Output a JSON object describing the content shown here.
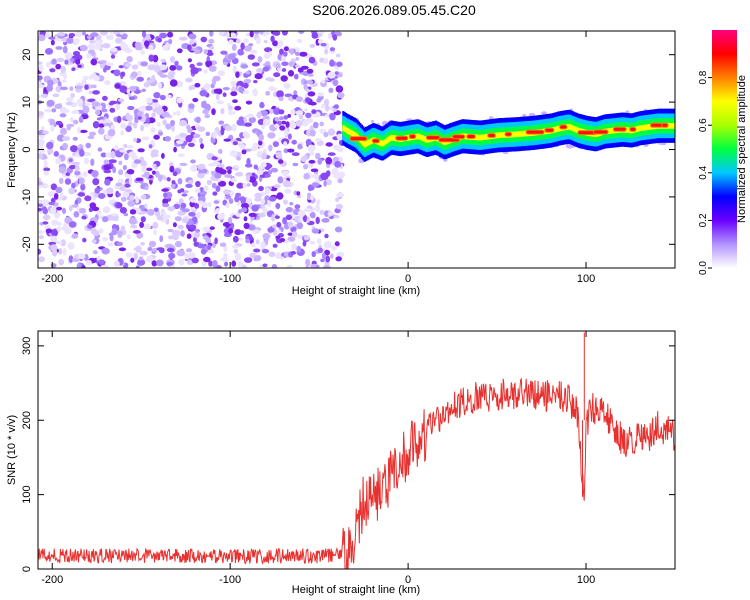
{
  "figure": {
    "title": "S206.2026.089.05.45.C20"
  },
  "chart_data": [
    {
      "type": "heatmap",
      "name": "spectrogram",
      "xlabel": "Height of straight line (km)",
      "ylabel": "Frequency (Hz)",
      "xlim": [
        -208,
        150
      ],
      "ylim": [
        -25,
        25
      ],
      "xticks": [
        -200,
        -100,
        0,
        100
      ],
      "yticks": [
        -20,
        -10,
        0,
        10,
        20
      ],
      "noise_region_x": [
        -208,
        -37
      ],
      "signal_track": {
        "x": [
          -37,
          -35,
          -30,
          -25,
          -20,
          -15,
          -10,
          -5,
          0,
          5,
          10,
          15,
          20,
          25,
          30,
          40,
          50,
          60,
          70,
          80,
          85,
          90,
          95,
          100,
          105,
          110,
          115,
          120,
          125,
          130,
          140,
          150
        ],
        "freq": [
          4.5,
          4.0,
          3.0,
          1.0,
          2.0,
          1.2,
          2.5,
          2.2,
          2.5,
          2.8,
          2.0,
          2.5,
          1.5,
          2.2,
          2.8,
          2.5,
          3.0,
          3.2,
          3.5,
          4.0,
          4.5,
          4.8,
          4.0,
          3.5,
          3.2,
          3.8,
          4.0,
          4.2,
          4.0,
          4.5,
          5.0,
          5.0
        ]
      },
      "colorbar": {
        "label": "Normalized spectral amplitude",
        "ticks": [
          "0.0",
          "0.2",
          "0.4",
          "0.6",
          "0.8"
        ],
        "range": [
          0,
          1
        ],
        "colors": [
          "#ffffff",
          "#b294ff",
          "#6a00ff",
          "#0000ff",
          "#00c8ff",
          "#00ff40",
          "#aaff00",
          "#ffff00",
          "#ff8000",
          "#ff0000",
          "#ff0080"
        ]
      }
    },
    {
      "type": "line",
      "name": "snr",
      "xlabel": "Height of straight line (km)",
      "ylabel": "SNR (10 * v/v)",
      "xlim": [
        -208,
        150
      ],
      "ylim": [
        0,
        320
      ],
      "xticks": [
        -200,
        -100,
        0,
        100
      ],
      "yticks": [
        0,
        100,
        200,
        300
      ],
      "color": "#e8302f",
      "profile": {
        "x": [
          -208,
          -100,
          -37,
          -32,
          -28,
          -25,
          -20,
          -15,
          -10,
          -5,
          0,
          5,
          10,
          15,
          20,
          30,
          40,
          60,
          80,
          90,
          95,
          97,
          99,
          100,
          102,
          110,
          115,
          120,
          125,
          130,
          135,
          140,
          145,
          150
        ],
        "y": [
          18,
          17,
          18,
          25,
          60,
          90,
          100,
          105,
          125,
          140,
          160,
          170,
          185,
          200,
          210,
          225,
          232,
          235,
          232,
          230,
          210,
          150,
          110,
          180,
          220,
          210,
          190,
          175,
          170,
          180,
          175,
          195,
          185,
          180
        ]
      },
      "spikes": [
        {
          "x": 99,
          "y": 318
        },
        {
          "x": 98,
          "y": 97
        }
      ]
    }
  ]
}
